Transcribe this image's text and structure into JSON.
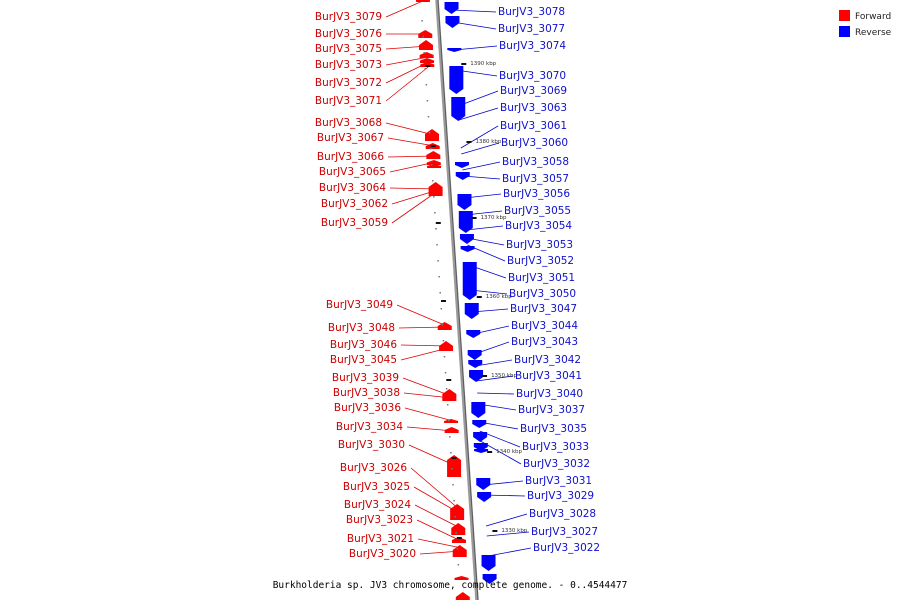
{
  "caption": "Burkholderia sp. JV3 chromosome, complete genome. - 0..4544477",
  "legend": [
    {
      "label": "Forward",
      "color": "#ff0000"
    },
    {
      "label": "Reverse",
      "color": "#0000ff"
    }
  ],
  "colors": {
    "forward": "#ff0000",
    "reverse": "#0000ff",
    "backbone": "#8a8a8a",
    "leader_forward": "#dd0000",
    "leader_reverse": "#0000cc"
  },
  "ticks": [
    "1390 kbp",
    "1380 kbp",
    "1370 kbp",
    "1360 kbp",
    "1350 kbp",
    "1340 kbp",
    "1330 kbp"
  ],
  "forward_labels": [
    "BurJV3_3079",
    "BurJV3_3076",
    "BurJV3_3075",
    "BurJV3_3073",
    "BurJV3_3072",
    "BurJV3_3071",
    "BurJV3_3068",
    "BurJV3_3067",
    "BurJV3_3066",
    "BurJV3_3065",
    "BurJV3_3064",
    "BurJV3_3062",
    "BurJV3_3059",
    "BurJV3_3049",
    "BurJV3_3048",
    "BurJV3_3046",
    "BurJV3_3045",
    "BurJV3_3039",
    "BurJV3_3038",
    "BurJV3_3036",
    "BurJV3_3034",
    "BurJV3_3030",
    "BurJV3_3026",
    "BurJV3_3025",
    "BurJV3_3024",
    "BurJV3_3023",
    "BurJV3_3021",
    "BurJV3_3020"
  ],
  "reverse_labels": [
    "BurJV3_3078",
    "BurJV3_3077",
    "BurJV3_3074",
    "BurJV3_3070",
    "BurJV3_3069",
    "BurJV3_3063",
    "BurJV3_3061",
    "BurJV3_3060",
    "BurJV3_3058",
    "BurJV3_3057",
    "BurJV3_3056",
    "BurJV3_3055",
    "BurJV3_3054",
    "BurJV3_3053",
    "BurJV3_3052",
    "BurJV3_3051",
    "BurJV3_3050",
    "BurJV3_3047",
    "BurJV3_3044",
    "BurJV3_3043",
    "BurJV3_3042",
    "BurJV3_3041",
    "BurJV3_3040",
    "BurJV3_3037",
    "BurJV3_3035",
    "BurJV3_3033",
    "BurJV3_3032",
    "BurJV3_3031",
    "BurJV3_3029",
    "BurJV3_3028",
    "BurJV3_3027",
    "BurJV3_3022"
  ]
}
